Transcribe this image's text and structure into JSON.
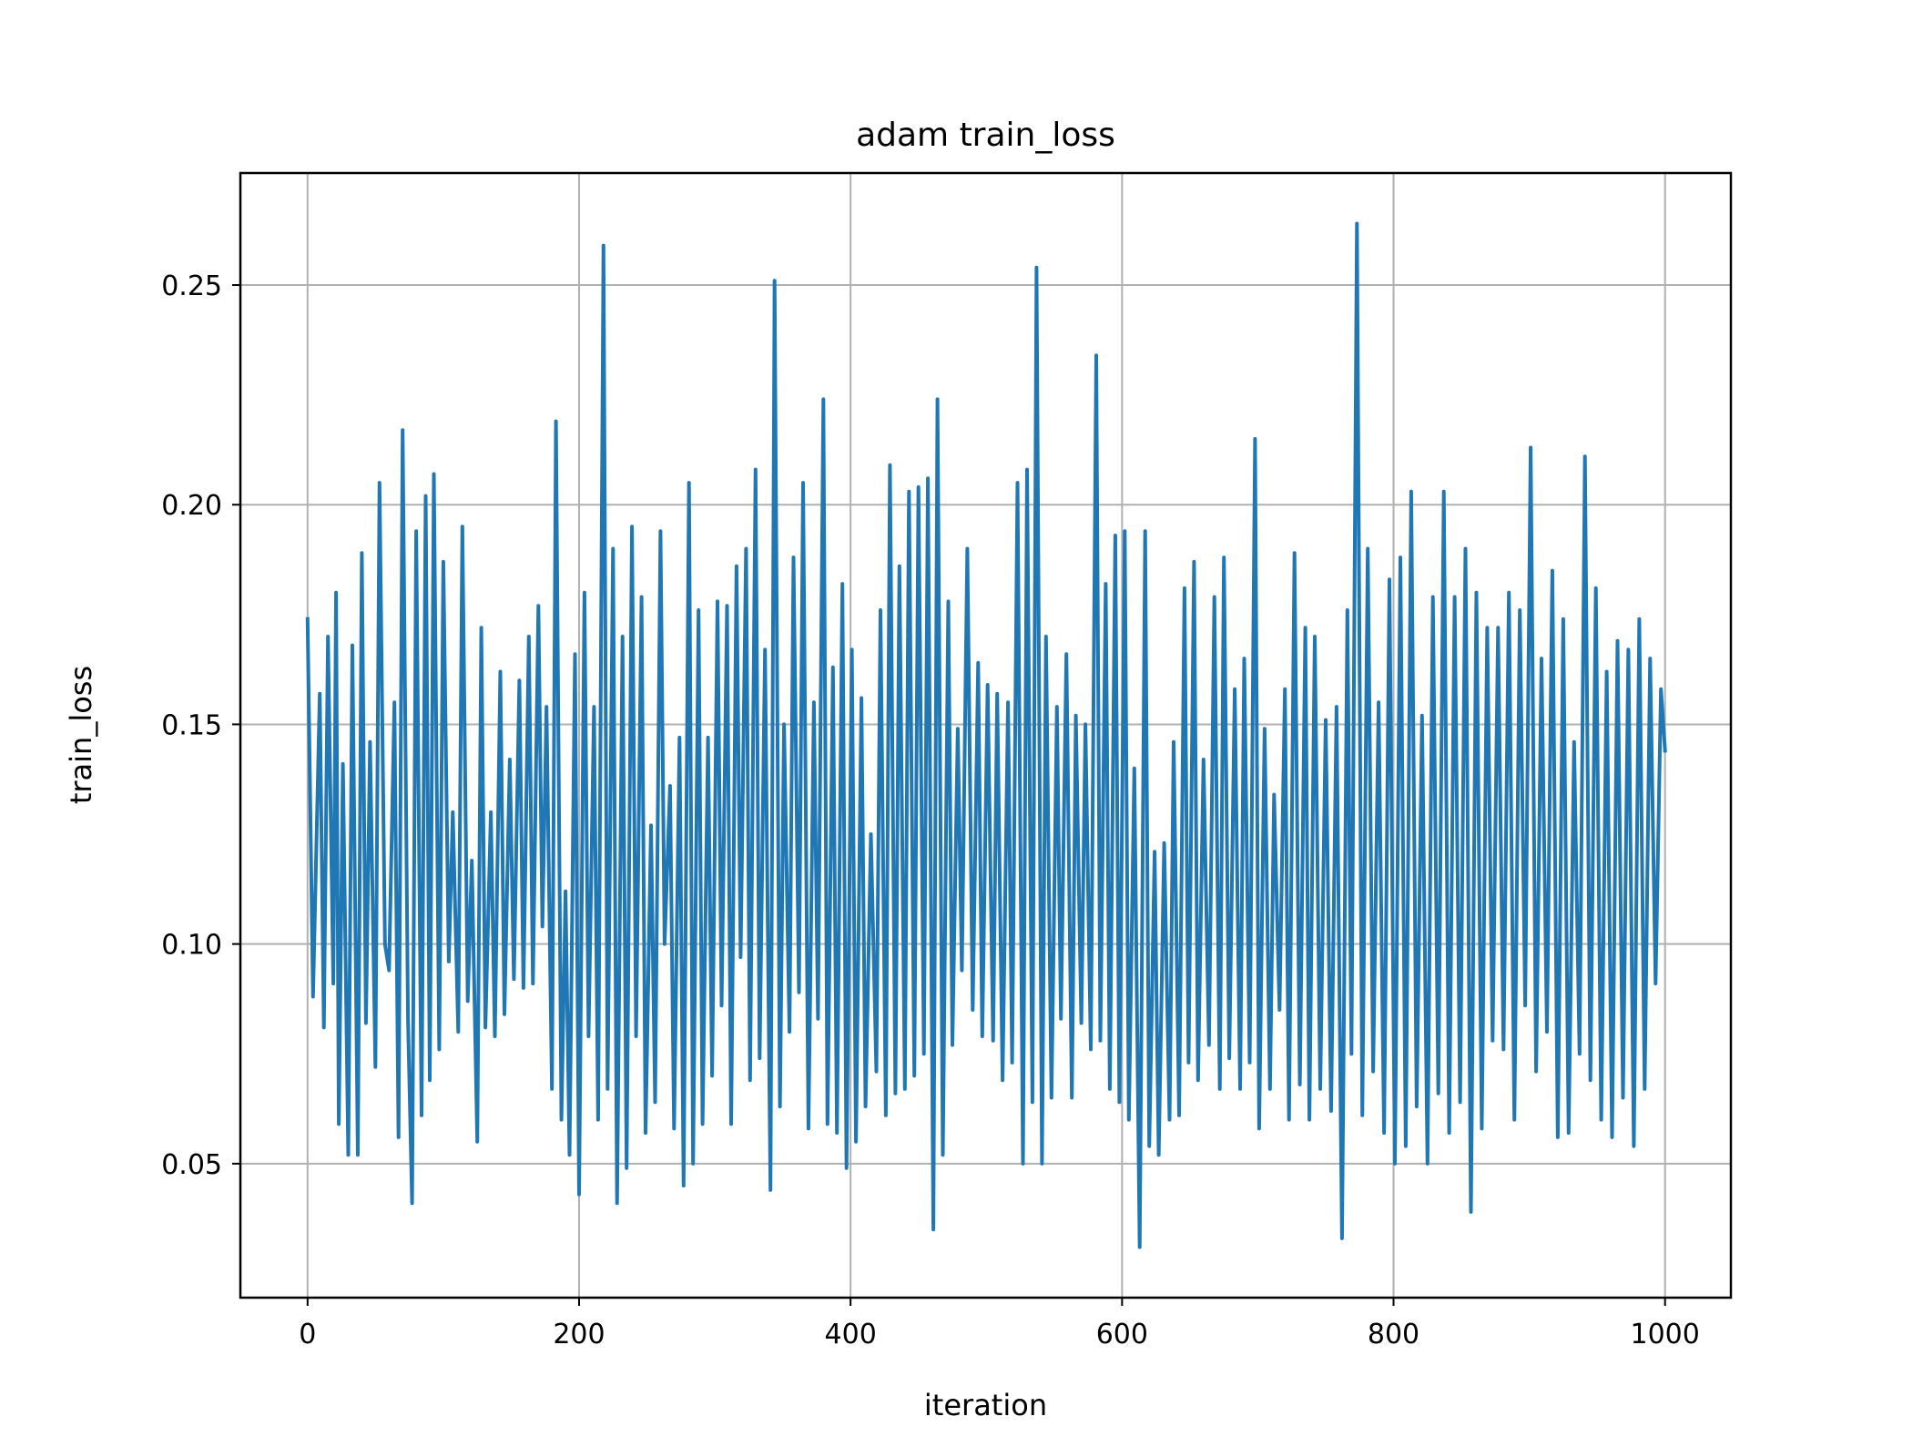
{
  "chart_data": {
    "type": "line",
    "title": "adam train_loss",
    "xlabel": "iteration",
    "ylabel": "train_loss",
    "xlim": [
      -49.5,
      1048.5
    ],
    "ylim": [
      0.0195,
      0.2755
    ],
    "x_ticks": [
      0,
      200,
      400,
      600,
      800,
      1000
    ],
    "x_tick_labels": [
      "0",
      "200",
      "400",
      "600",
      "800",
      "1000"
    ],
    "y_ticks": [
      0.05,
      0.1,
      0.15,
      0.2,
      0.25
    ],
    "y_tick_labels": [
      "0.05",
      "0.10",
      "0.15",
      "0.20",
      "0.25"
    ],
    "grid": true,
    "legend": "none",
    "series": [
      {
        "color": "#1f77b4",
        "points": [
          [
            0,
            0.174
          ],
          [
            4,
            0.088
          ],
          [
            9,
            0.157
          ],
          [
            12,
            0.081
          ],
          [
            15,
            0.17
          ],
          [
            19,
            0.091
          ],
          [
            21,
            0.18
          ],
          [
            23,
            0.059
          ],
          [
            26,
            0.141
          ],
          [
            30,
            0.052
          ],
          [
            33,
            0.168
          ],
          [
            37,
            0.052
          ],
          [
            40,
            0.189
          ],
          [
            43,
            0.082
          ],
          [
            46,
            0.146
          ],
          [
            50,
            0.072
          ],
          [
            53,
            0.205
          ],
          [
            57,
            0.1
          ],
          [
            60,
            0.094
          ],
          [
            64,
            0.155
          ],
          [
            67,
            0.056
          ],
          [
            70,
            0.217
          ],
          [
            74,
            0.083
          ],
          [
            77,
            0.041
          ],
          [
            80,
            0.194
          ],
          [
            84,
            0.061
          ],
          [
            87,
            0.202
          ],
          [
            90,
            0.069
          ],
          [
            93,
            0.207
          ],
          [
            97,
            0.076
          ],
          [
            100,
            0.187
          ],
          [
            104,
            0.096
          ],
          [
            107,
            0.13
          ],
          [
            111,
            0.08
          ],
          [
            114,
            0.195
          ],
          [
            118,
            0.087
          ],
          [
            121,
            0.119
          ],
          [
            125,
            0.055
          ],
          [
            128,
            0.172
          ],
          [
            131,
            0.081
          ],
          [
            135,
            0.13
          ],
          [
            138,
            0.079
          ],
          [
            142,
            0.162
          ],
          [
            145,
            0.084
          ],
          [
            149,
            0.142
          ],
          [
            152,
            0.092
          ],
          [
            156,
            0.16
          ],
          [
            159,
            0.09
          ],
          [
            163,
            0.17
          ],
          [
            166,
            0.091
          ],
          [
            170,
            0.177
          ],
          [
            173,
            0.104
          ],
          [
            176,
            0.154
          ],
          [
            180,
            0.067
          ],
          [
            183,
            0.219
          ],
          [
            187,
            0.06
          ],
          [
            190,
            0.112
          ],
          [
            193,
            0.052
          ],
          [
            197,
            0.166
          ],
          [
            200,
            0.043
          ],
          [
            204,
            0.18
          ],
          [
            207,
            0.079
          ],
          [
            211,
            0.154
          ],
          [
            214,
            0.06
          ],
          [
            218,
            0.259
          ],
          [
            221,
            0.067
          ],
          [
            225,
            0.19
          ],
          [
            228,
            0.041
          ],
          [
            232,
            0.17
          ],
          [
            235,
            0.049
          ],
          [
            239,
            0.195
          ],
          [
            242,
            0.079
          ],
          [
            246,
            0.179
          ],
          [
            249,
            0.057
          ],
          [
            253,
            0.127
          ],
          [
            256,
            0.064
          ],
          [
            260,
            0.194
          ],
          [
            263,
            0.1
          ],
          [
            267,
            0.136
          ],
          [
            270,
            0.058
          ],
          [
            274,
            0.147
          ],
          [
            277,
            0.045
          ],
          [
            281,
            0.205
          ],
          [
            284,
            0.05
          ],
          [
            288,
            0.176
          ],
          [
            291,
            0.059
          ],
          [
            295,
            0.147
          ],
          [
            298,
            0.07
          ],
          [
            302,
            0.178
          ],
          [
            305,
            0.086
          ],
          [
            309,
            0.177
          ],
          [
            312,
            0.059
          ],
          [
            316,
            0.186
          ],
          [
            319,
            0.097
          ],
          [
            323,
            0.19
          ],
          [
            326,
            0.069
          ],
          [
            330,
            0.208
          ],
          [
            333,
            0.074
          ],
          [
            337,
            0.167
          ],
          [
            341,
            0.044
          ],
          [
            344,
            0.251
          ],
          [
            348,
            0.063
          ],
          [
            351,
            0.15
          ],
          [
            355,
            0.08
          ],
          [
            358,
            0.188
          ],
          [
            362,
            0.089
          ],
          [
            365,
            0.205
          ],
          [
            369,
            0.058
          ],
          [
            373,
            0.155
          ],
          [
            376,
            0.083
          ],
          [
            380,
            0.224
          ],
          [
            383,
            0.059
          ],
          [
            387,
            0.163
          ],
          [
            390,
            0.057
          ],
          [
            394,
            0.182
          ],
          [
            397,
            0.049
          ],
          [
            401,
            0.167
          ],
          [
            404,
            0.055
          ],
          [
            408,
            0.156
          ],
          [
            411,
            0.063
          ],
          [
            415,
            0.125
          ],
          [
            419,
            0.071
          ],
          [
            422,
            0.176
          ],
          [
            426,
            0.061
          ],
          [
            429,
            0.209
          ],
          [
            433,
            0.066
          ],
          [
            436,
            0.186
          ],
          [
            440,
            0.067
          ],
          [
            443,
            0.203
          ],
          [
            447,
            0.07
          ],
          [
            450,
            0.204
          ],
          [
            454,
            0.075
          ],
          [
            457,
            0.206
          ],
          [
            461,
            0.035
          ],
          [
            464,
            0.224
          ],
          [
            468,
            0.052
          ],
          [
            472,
            0.178
          ],
          [
            475,
            0.077
          ],
          [
            479,
            0.149
          ],
          [
            482,
            0.094
          ],
          [
            486,
            0.19
          ],
          [
            490,
            0.085
          ],
          [
            494,
            0.164
          ],
          [
            497,
            0.079
          ],
          [
            501,
            0.159
          ],
          [
            505,
            0.078
          ],
          [
            508,
            0.157
          ],
          [
            512,
            0.069
          ],
          [
            516,
            0.155
          ],
          [
            519,
            0.073
          ],
          [
            523,
            0.205
          ],
          [
            527,
            0.05
          ],
          [
            530,
            0.208
          ],
          [
            534,
            0.064
          ],
          [
            537,
            0.254
          ],
          [
            541,
            0.05
          ],
          [
            544,
            0.17
          ],
          [
            548,
            0.065
          ],
          [
            552,
            0.154
          ],
          [
            555,
            0.083
          ],
          [
            559,
            0.166
          ],
          [
            563,
            0.065
          ],
          [
            566,
            0.152
          ],
          [
            570,
            0.082
          ],
          [
            573,
            0.15
          ],
          [
            577,
            0.076
          ],
          [
            581,
            0.234
          ],
          [
            584,
            0.078
          ],
          [
            588,
            0.182
          ],
          [
            591,
            0.067
          ],
          [
            595,
            0.193
          ],
          [
            598,
            0.064
          ],
          [
            602,
            0.194
          ],
          [
            605,
            0.06
          ],
          [
            609,
            0.14
          ],
          [
            613,
            0.031
          ],
          [
            617,
            0.194
          ],
          [
            620,
            0.054
          ],
          [
            624,
            0.121
          ],
          [
            627,
            0.052
          ],
          [
            631,
            0.123
          ],
          [
            635,
            0.06
          ],
          [
            638,
            0.146
          ],
          [
            642,
            0.061
          ],
          [
            646,
            0.181
          ],
          [
            649,
            0.073
          ],
          [
            653,
            0.187
          ],
          [
            656,
            0.069
          ],
          [
            660,
            0.142
          ],
          [
            664,
            0.077
          ],
          [
            668,
            0.179
          ],
          [
            672,
            0.067
          ],
          [
            675,
            0.188
          ],
          [
            679,
            0.074
          ],
          [
            683,
            0.158
          ],
          [
            687,
            0.067
          ],
          [
            690,
            0.165
          ],
          [
            694,
            0.073
          ],
          [
            698,
            0.215
          ],
          [
            701,
            0.058
          ],
          [
            705,
            0.149
          ],
          [
            709,
            0.067
          ],
          [
            712,
            0.134
          ],
          [
            716,
            0.085
          ],
          [
            720,
            0.158
          ],
          [
            723,
            0.06
          ],
          [
            727,
            0.189
          ],
          [
            731,
            0.068
          ],
          [
            735,
            0.172
          ],
          [
            738,
            0.06
          ],
          [
            742,
            0.17
          ],
          [
            746,
            0.067
          ],
          [
            750,
            0.151
          ],
          [
            754,
            0.062
          ],
          [
            758,
            0.154
          ],
          [
            762,
            0.033
          ],
          [
            766,
            0.176
          ],
          [
            769,
            0.075
          ],
          [
            773,
            0.264
          ],
          [
            777,
            0.061
          ],
          [
            781,
            0.19
          ],
          [
            785,
            0.071
          ],
          [
            789,
            0.155
          ],
          [
            793,
            0.057
          ],
          [
            797,
            0.183
          ],
          [
            801,
            0.05
          ],
          [
            805,
            0.188
          ],
          [
            809,
            0.054
          ],
          [
            813,
            0.203
          ],
          [
            817,
            0.063
          ],
          [
            821,
            0.152
          ],
          [
            825,
            0.05
          ],
          [
            829,
            0.179
          ],
          [
            833,
            0.066
          ],
          [
            837,
            0.203
          ],
          [
            841,
            0.057
          ],
          [
            845,
            0.179
          ],
          [
            849,
            0.064
          ],
          [
            853,
            0.19
          ],
          [
            857,
            0.039
          ],
          [
            861,
            0.18
          ],
          [
            865,
            0.058
          ],
          [
            869,
            0.172
          ],
          [
            873,
            0.078
          ],
          [
            877,
            0.172
          ],
          [
            881,
            0.076
          ],
          [
            885,
            0.18
          ],
          [
            889,
            0.06
          ],
          [
            893,
            0.176
          ],
          [
            897,
            0.086
          ],
          [
            901,
            0.213
          ],
          [
            905,
            0.071
          ],
          [
            909,
            0.165
          ],
          [
            913,
            0.08
          ],
          [
            917,
            0.185
          ],
          [
            921,
            0.056
          ],
          [
            925,
            0.174
          ],
          [
            929,
            0.057
          ],
          [
            933,
            0.146
          ],
          [
            937,
            0.075
          ],
          [
            941,
            0.211
          ],
          [
            945,
            0.069
          ],
          [
            949,
            0.181
          ],
          [
            953,
            0.06
          ],
          [
            957,
            0.162
          ],
          [
            961,
            0.056
          ],
          [
            965,
            0.169
          ],
          [
            969,
            0.065
          ],
          [
            973,
            0.167
          ],
          [
            977,
            0.054
          ],
          [
            981,
            0.174
          ],
          [
            985,
            0.067
          ],
          [
            989,
            0.165
          ],
          [
            993,
            0.091
          ],
          [
            997,
            0.158
          ],
          [
            1000,
            0.144
          ]
        ]
      }
    ]
  }
}
